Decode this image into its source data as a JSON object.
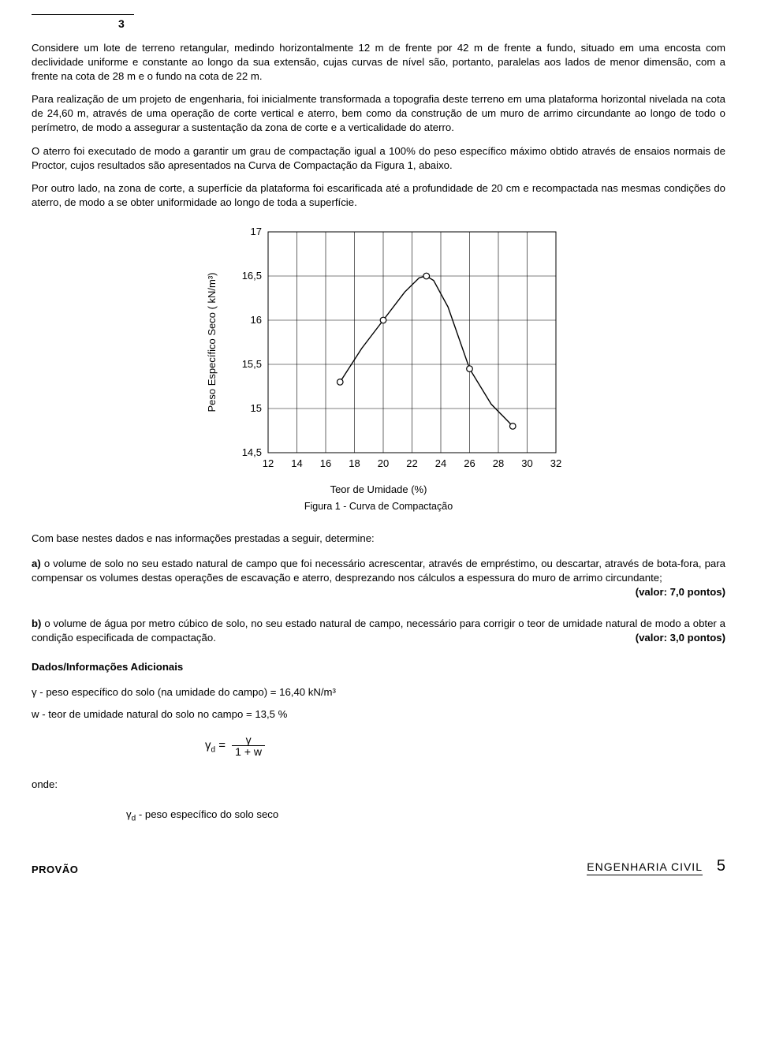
{
  "question_number": "3",
  "paragraphs": {
    "p1": "Considere um lote de terreno retangular, medindo horizontalmente 12 m de frente por 42 m de frente a fundo, situado em uma encosta com declividade uniforme e constante ao longo da sua extensão, cujas curvas de nível são, portanto, paralelas aos lados de menor dimensão, com a frente na cota de 28 m e o fundo na cota de 22 m.",
    "p2": "Para realização de um projeto de engenharia, foi inicialmente transformada a topografia deste terreno em uma plataforma horizontal nivelada na cota de 24,60 m, através de uma operação de corte vertical e aterro, bem como da construção de um muro de arrimo circundante ao longo de todo o perímetro, de modo a assegurar a sustentação da zona de corte e a verticalidade do aterro.",
    "p3": "O aterro foi executado de modo a garantir um grau de compactação igual a 100% do peso específico máximo obtido através de ensaios normais de Proctor, cujos resultados são apresentados na Curva de Compactação da Figura 1, abaixo.",
    "p4": "Por outro lado, na zona de corte, a superfície da plataforma foi escarificada até a profundidade de 20 cm e recompactada nas mesmas condições do aterro, de modo a se obter uniformidade ao longo de toda a superfície."
  },
  "chart": {
    "type": "line-scatter",
    "ylabel": "Peso Específico Seco ( kN/m³)",
    "xlabel": "Teor de Umidade (%)",
    "caption": "Figura 1 - Curva de Compactação",
    "xlim": [
      12,
      32
    ],
    "ylim": [
      14.5,
      17
    ],
    "xticks": [
      12,
      14,
      16,
      18,
      20,
      22,
      24,
      26,
      28,
      30,
      32
    ],
    "yticks_labels": [
      "17",
      "16,5",
      "16",
      "15,5",
      "15",
      "14,5"
    ],
    "ytick_values": [
      17,
      16.5,
      16,
      15.5,
      15,
      14.5
    ],
    "points": [
      {
        "x": 17,
        "y": 15.3
      },
      {
        "x": 20,
        "y": 16.0
      },
      {
        "x": 23,
        "y": 16.5
      },
      {
        "x": 26,
        "y": 15.45
      },
      {
        "x": 29,
        "y": 14.8
      }
    ],
    "curve": [
      {
        "x": 17,
        "y": 15.3
      },
      {
        "x": 18.5,
        "y": 15.68
      },
      {
        "x": 20,
        "y": 16.0
      },
      {
        "x": 21.5,
        "y": 16.32
      },
      {
        "x": 22.5,
        "y": 16.48
      },
      {
        "x": 23,
        "y": 16.5
      },
      {
        "x": 23.5,
        "y": 16.45
      },
      {
        "x": 24.5,
        "y": 16.15
      },
      {
        "x": 26,
        "y": 15.45
      },
      {
        "x": 27.5,
        "y": 15.05
      },
      {
        "x": 29,
        "y": 14.8
      }
    ],
    "line_color": "#000000",
    "marker_color": "#ffffff",
    "marker_stroke": "#000000",
    "grid_color": "#000000",
    "background_color": "#ffffff",
    "label_fontsize": 13,
    "tick_fontsize": 13
  },
  "lead_in": "Com base nestes dados e nas informações prestadas a seguir, determine:",
  "item_a": {
    "label": "a)",
    "text": "o volume de solo no seu estado natural de campo que foi necessário acrescentar, através de empréstimo, ou descartar, através de bota-fora, para compensar os volumes destas operações de escavação e aterro, desprezando nos cálculos a espessura do muro de arrimo circundante;",
    "score": "(valor: 7,0 pontos)"
  },
  "item_b": {
    "label": "b)",
    "text": "o volume de água por metro cúbico de solo, no seu estado natural de campo, necessário para corrigir o teor de umidade natural de modo a obter a condição especificada de compactação.",
    "score": "(valor: 3,0 pontos)"
  },
  "dados": {
    "heading": "Dados/Informações Adicionais",
    "gamma_line": "γ - peso específico do solo (na umidade do campo) = 16,40  kN/m³",
    "w_line": "w - teor de umidade natural do solo no campo = 13,5 %"
  },
  "formula": {
    "lhs": "γ",
    "lhs_sub": "d",
    "eq": " = ",
    "num": "γ",
    "den": "1 + w"
  },
  "onde": "onde:",
  "gamma_d_desc": "γd - peso específico do solo seco",
  "footer": {
    "logo": "PROVÃO",
    "subject": "ENGENHARIA CIVIL",
    "page": "5"
  }
}
